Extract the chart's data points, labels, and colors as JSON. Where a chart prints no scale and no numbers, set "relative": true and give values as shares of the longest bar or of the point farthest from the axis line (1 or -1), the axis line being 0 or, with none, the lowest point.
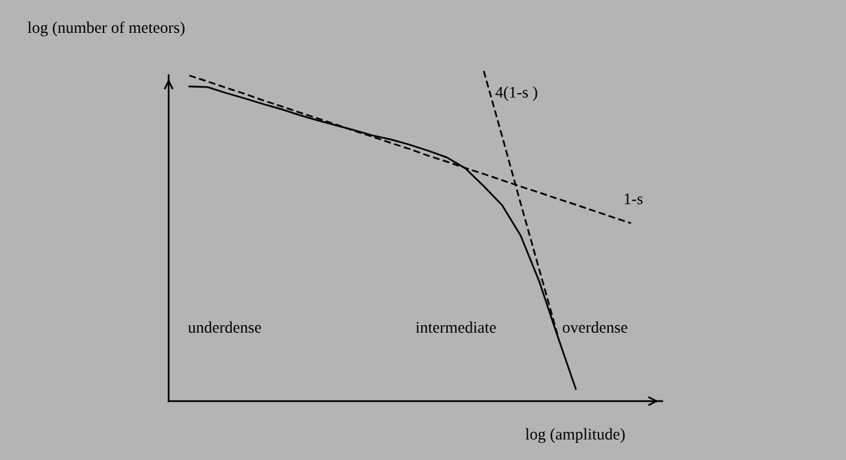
{
  "chart_data": {
    "type": "line",
    "relative": true,
    "xlabel": "log (amplitude)",
    "ylabel": "log (number of meteors)",
    "legend": false,
    "marker": "none",
    "categories": [
      null,
      null,
      null,
      null,
      null,
      null,
      null,
      null,
      null,
      null,
      null,
      null,
      null,
      null,
      null,
      null,
      null,
      null,
      null,
      null,
      null,
      null,
      null,
      null,
      null
    ],
    "annotations": [
      "underdense",
      "intermediate",
      "overdense"
    ],
    "series": [
      {
        "color": "#000000",
        "line_style": "solid",
        "values": [
          0.953,
          0.951,
          0.933,
          0.917,
          0.9,
          0.884,
          0.866,
          0.85,
          0.835,
          0.82,
          0.804,
          0.792,
          0.776,
          0.758,
          0.738,
          0.705,
          0.651,
          0.593,
          0.502,
          0.365,
          0.199,
          0.037,
          null,
          null,
          null
        ]
      },
      {
        "name": "1-s",
        "color": "#000000",
        "line_style": "dashed",
        "values": [
          0.986,
          0.968,
          0.949,
          0.931,
          0.911,
          0.893,
          0.874,
          0.856,
          0.837,
          0.818,
          0.8,
          0.781,
          0.763,
          0.743,
          0.725,
          0.706,
          0.688,
          0.669,
          0.65,
          0.632,
          0.613,
          0.595,
          0.576,
          0.557,
          0.539
        ]
      },
      {
        "name": "4(1-s )",
        "color": "#000000",
        "line_style": "dashed",
        "values": [
          null,
          null,
          null,
          null,
          null,
          null,
          null,
          null,
          null,
          null,
          null,
          null,
          null,
          null,
          null,
          null,
          1.0,
          0.802,
          0.6,
          0.402,
          0.203,
          null,
          null,
          null,
          null
        ]
      }
    ]
  }
}
